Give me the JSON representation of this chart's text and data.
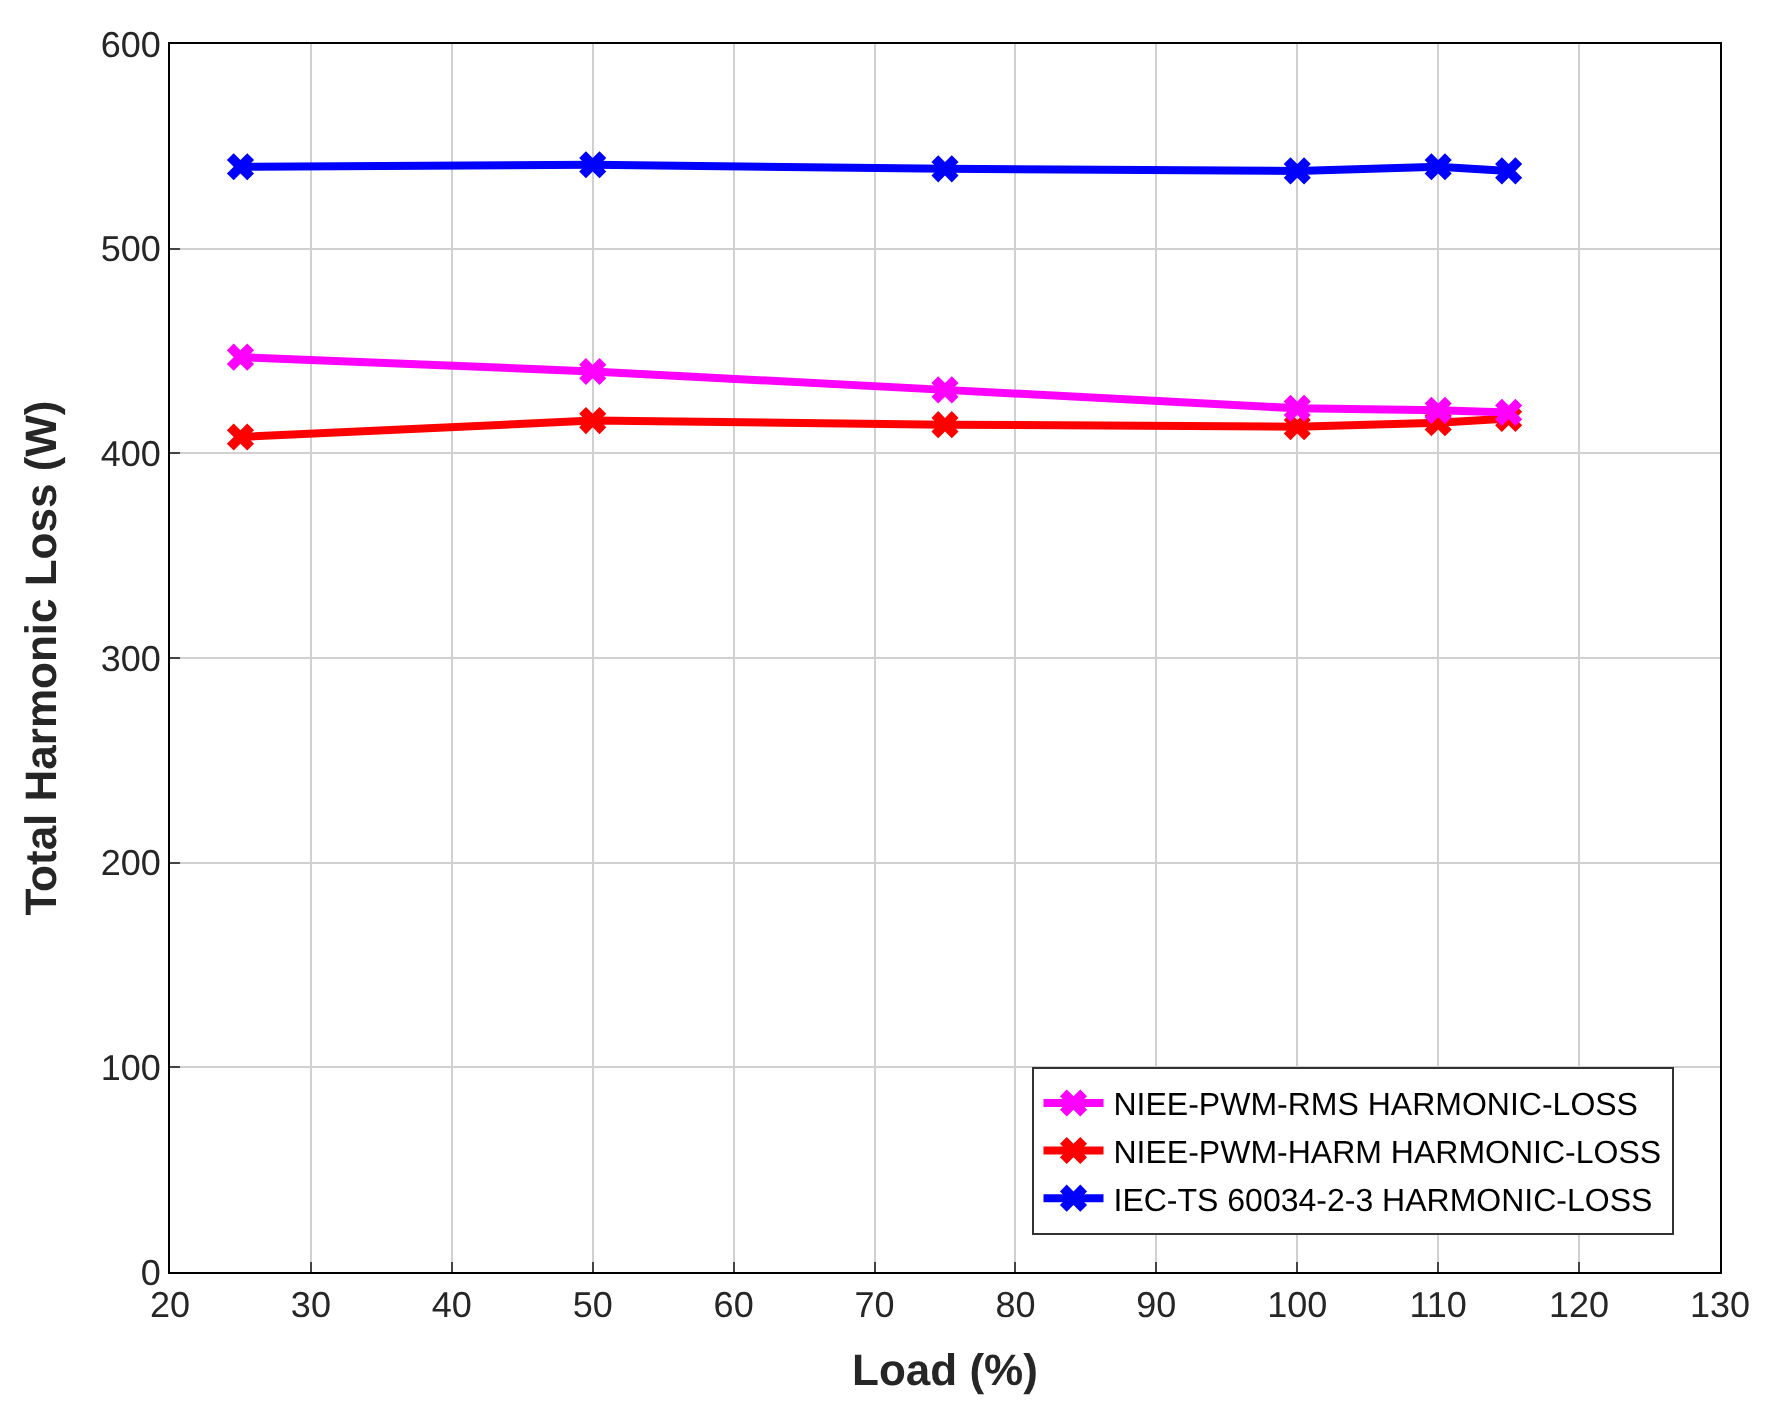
{
  "chart_data": {
    "type": "line",
    "xlabel": "Load (%)",
    "ylabel": "Total Harmonic Loss (W)",
    "x": [
      25,
      50,
      75,
      100,
      110,
      115
    ],
    "series": [
      {
        "name": "NIEE-PWM-RMS HARMONIC-LOSS",
        "color": "#ff00ff",
        "values": [
          447,
          440,
          431,
          422,
          421,
          420
        ]
      },
      {
        "name": "NIEE-PWM-HARM HARMONIC-LOSS",
        "color": "#ff0000",
        "values": [
          408,
          416,
          414,
          413,
          415,
          417
        ]
      },
      {
        "name": "IEC-TS 60034-2-3 HARMONIC-LOSS",
        "color": "#0000ff",
        "values": [
          540,
          541,
          539,
          538,
          540,
          538
        ]
      }
    ],
    "xlim": [
      20,
      130
    ],
    "xticks": [
      20,
      30,
      40,
      50,
      60,
      70,
      80,
      90,
      100,
      110,
      120,
      130
    ],
    "ylim": [
      0,
      600
    ],
    "yticks": [
      0,
      100,
      200,
      300,
      400,
      500,
      600
    ],
    "grid": true,
    "legend": "bottom right",
    "marker": "cross",
    "line_style": "solid"
  }
}
